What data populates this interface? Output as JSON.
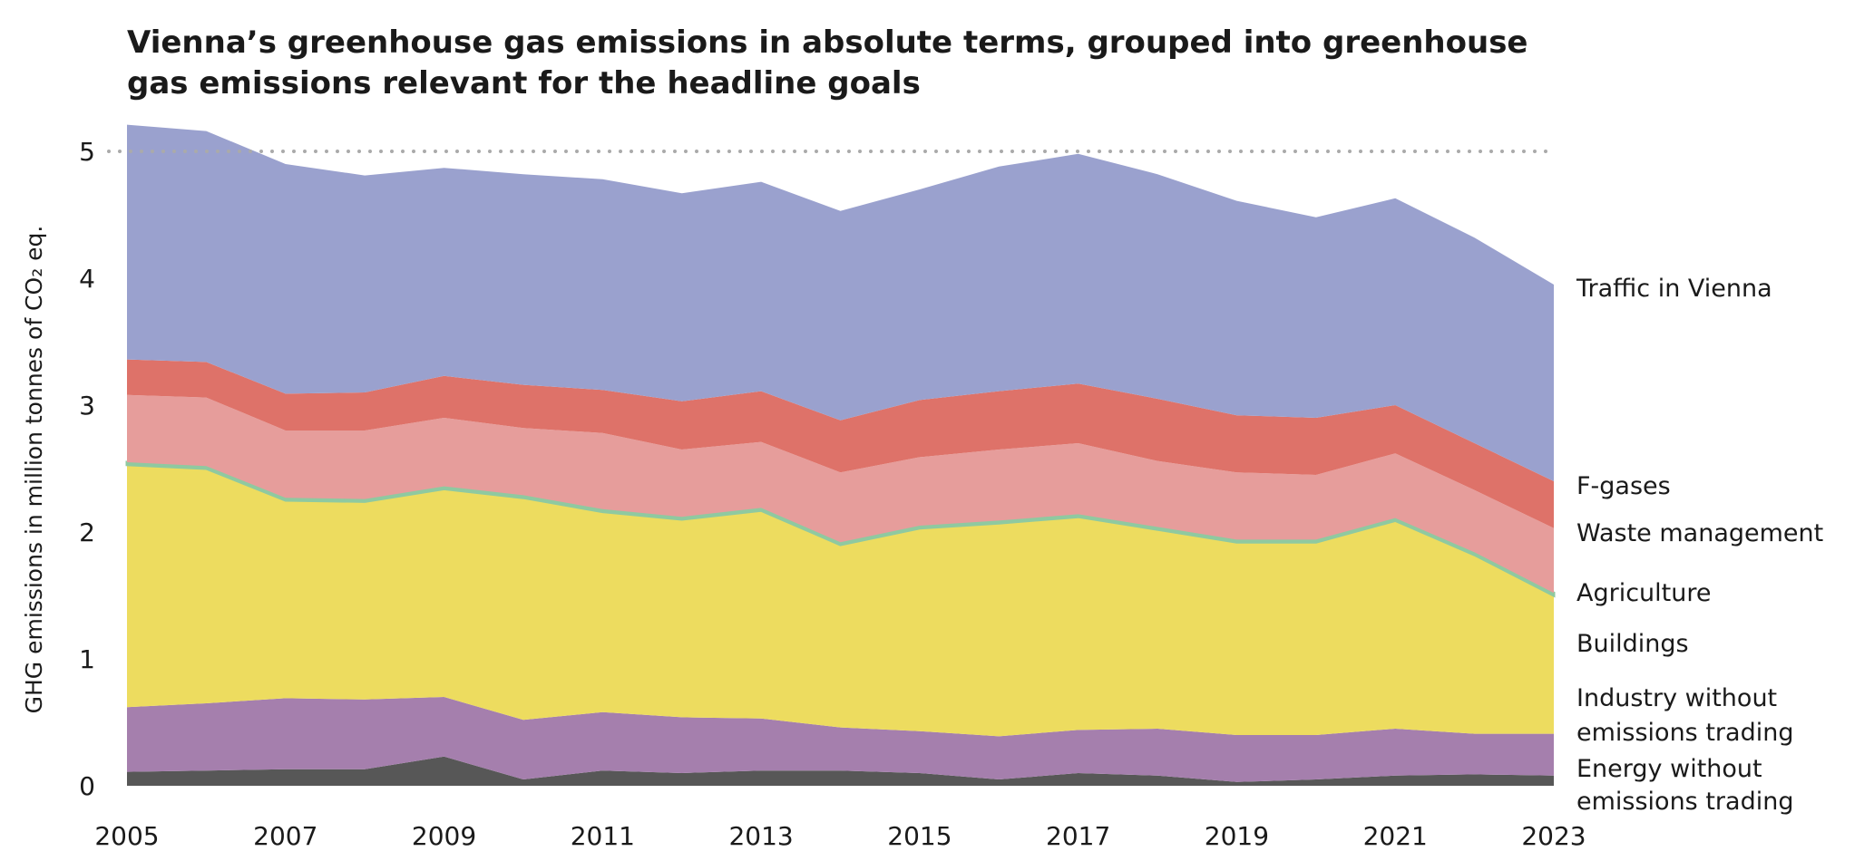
{
  "chart_data": {
    "type": "area",
    "stacked": true,
    "title_lines": [
      "Vienna’s greenhouse gas emissions in absolute terms, grouped into greenhouse",
      "gas emissions relevant for the headline goals"
    ],
    "ylabel": "GHG emissions in million tonnes of CO₂ eq.",
    "xlabel": "",
    "ylim": [
      0,
      5.2
    ],
    "yticks": [
      "0",
      "1",
      "2",
      "3",
      "4",
      "5"
    ],
    "xticks": [
      "2005",
      "2007",
      "2009",
      "2011",
      "2013",
      "2015",
      "2017",
      "2019",
      "2021",
      "2023"
    ],
    "reference_line": {
      "y": 5,
      "style": "dotted",
      "color": "#aaaaaa"
    },
    "legend_placement": "right, inline labels",
    "x": [
      2005,
      2006,
      2007,
      2008,
      2009,
      2010,
      2011,
      2012,
      2013,
      2014,
      2015,
      2016,
      2017,
      2018,
      2019,
      2020,
      2021,
      2022,
      2023
    ],
    "series": [
      {
        "name": "Energy without emissions trading",
        "label_lines": [
          "Energy without",
          "emissions trading"
        ],
        "color": "#575757",
        "values": [
          0.11,
          0.12,
          0.13,
          0.13,
          0.23,
          0.05,
          0.12,
          0.1,
          0.12,
          0.12,
          0.1,
          0.05,
          0.1,
          0.08,
          0.03,
          0.05,
          0.08,
          0.09,
          0.08
        ]
      },
      {
        "name": "Industry without emissions trading",
        "label_lines": [
          "Industry without",
          "emissions trading"
        ],
        "color": "#a57fad",
        "values": [
          0.51,
          0.53,
          0.56,
          0.55,
          0.47,
          0.47,
          0.46,
          0.44,
          0.41,
          0.34,
          0.33,
          0.34,
          0.34,
          0.37,
          0.37,
          0.35,
          0.37,
          0.32,
          0.33
        ]
      },
      {
        "name": "Buildings",
        "label_lines": [
          "Buildings"
        ],
        "color": "#eddc5f",
        "values": [
          1.91,
          1.85,
          1.56,
          1.56,
          1.64,
          1.75,
          1.58,
          1.56,
          1.64,
          1.44,
          1.6,
          1.68,
          1.68,
          1.57,
          1.52,
          1.52,
          1.64,
          1.41,
          1.09
        ]
      },
      {
        "name": "Agriculture",
        "label_lines": [
          "Agriculture"
        ],
        "color": "#8fc9a0",
        "values": [
          0.02,
          0.02,
          0.02,
          0.02,
          0.02,
          0.02,
          0.02,
          0.02,
          0.02,
          0.02,
          0.02,
          0.02,
          0.02,
          0.02,
          0.02,
          0.02,
          0.02,
          0.02,
          0.02
        ]
      },
      {
        "name": "Waste management",
        "label_lines": [
          "Waste management"
        ],
        "color": "#e69d9b",
        "values": [
          0.53,
          0.54,
          0.53,
          0.54,
          0.54,
          0.53,
          0.6,
          0.53,
          0.52,
          0.55,
          0.54,
          0.56,
          0.56,
          0.52,
          0.53,
          0.51,
          0.51,
          0.49,
          0.51
        ]
      },
      {
        "name": "F-gases",
        "label_lines": [
          "F-gases"
        ],
        "color": "#de7269",
        "values": [
          0.28,
          0.28,
          0.29,
          0.3,
          0.33,
          0.34,
          0.34,
          0.38,
          0.4,
          0.41,
          0.45,
          0.46,
          0.47,
          0.49,
          0.45,
          0.45,
          0.38,
          0.37,
          0.37
        ]
      },
      {
        "name": "Traffic in Vienna",
        "label_lines": [
          "Traffic in Vienna"
        ],
        "color": "#9aa1ce",
        "values": [
          1.85,
          1.82,
          1.81,
          1.71,
          1.64,
          1.66,
          1.66,
          1.64,
          1.65,
          1.65,
          1.66,
          1.77,
          1.81,
          1.77,
          1.69,
          1.58,
          1.63,
          1.62,
          1.55
        ]
      }
    ]
  }
}
